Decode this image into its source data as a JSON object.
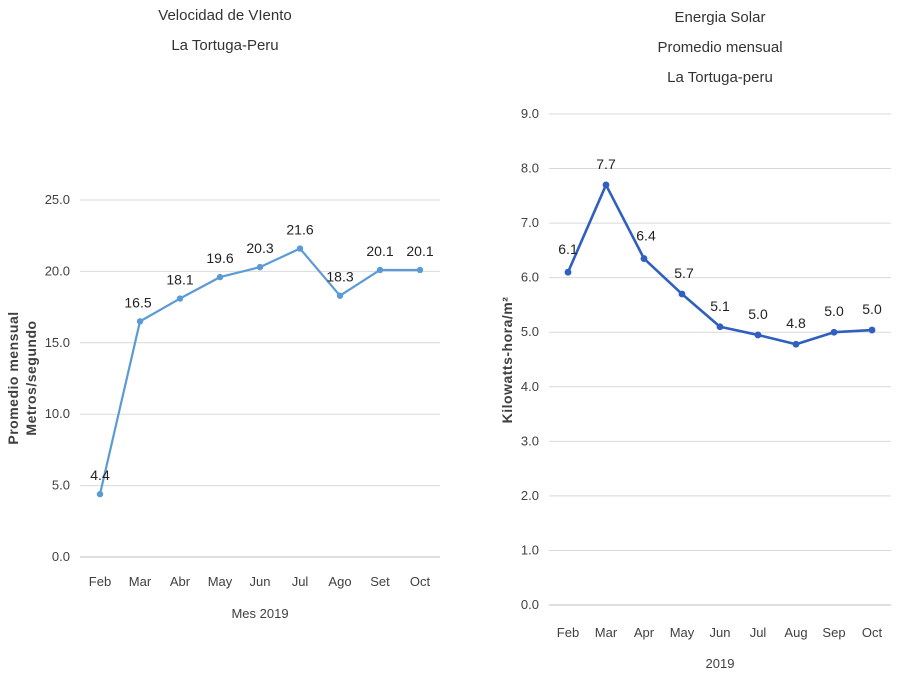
{
  "chart_data": [
    {
      "type": "line",
      "title": [
        "Velocidad de VIento",
        "La Tortuga-Peru"
      ],
      "xlabel": "Mes 2019",
      "ylabel": [
        "Promedio mensual",
        "Metros/segundo"
      ],
      "categories": [
        "Feb",
        "Mar",
        "Abr",
        "May",
        "Jun",
        "Jul",
        "Ago",
        "Set",
        "Oct"
      ],
      "values": [
        4.4,
        16.5,
        18.1,
        19.6,
        20.3,
        21.6,
        18.3,
        20.1,
        20.1
      ],
      "data_labels": [
        "4.4",
        "16.5",
        "18.1",
        "19.6",
        "20.3",
        "21.6",
        "18.3",
        "20.1",
        "20.1"
      ],
      "ylim": [
        0,
        25
      ],
      "yticks": [
        "0.0",
        "5.0",
        "10.0",
        "15.0",
        "20.0",
        "25.0"
      ],
      "color": "#5b9bd5",
      "grid": true,
      "legend": "none"
    },
    {
      "type": "line",
      "title": [
        "Energia Solar",
        "Promedio mensual",
        "La Tortuga-peru"
      ],
      "xlabel": "2019",
      "ylabel": [
        "Kilowatts-hora/m²"
      ],
      "categories": [
        "Feb",
        "Mar",
        "Apr",
        "May",
        "Jun",
        "Jul",
        "Aug",
        "Sep",
        "Oct"
      ],
      "values": [
        6.1,
        7.7,
        6.35,
        5.7,
        5.1,
        4.95,
        4.78,
        5.0,
        5.04
      ],
      "data_labels": [
        "6.1",
        "7.7",
        "6.4",
        "5.7",
        "5.1",
        "5.0",
        "4.8",
        "5.0",
        "5.0"
      ],
      "ylim": [
        0,
        9
      ],
      "yticks": [
        "0.0",
        "1.0",
        "2.0",
        "3.0",
        "4.0",
        "5.0",
        "6.0",
        "7.0",
        "8.0",
        "9.0"
      ],
      "color": "#2f5fbf",
      "grid": true,
      "legend": "none"
    }
  ]
}
